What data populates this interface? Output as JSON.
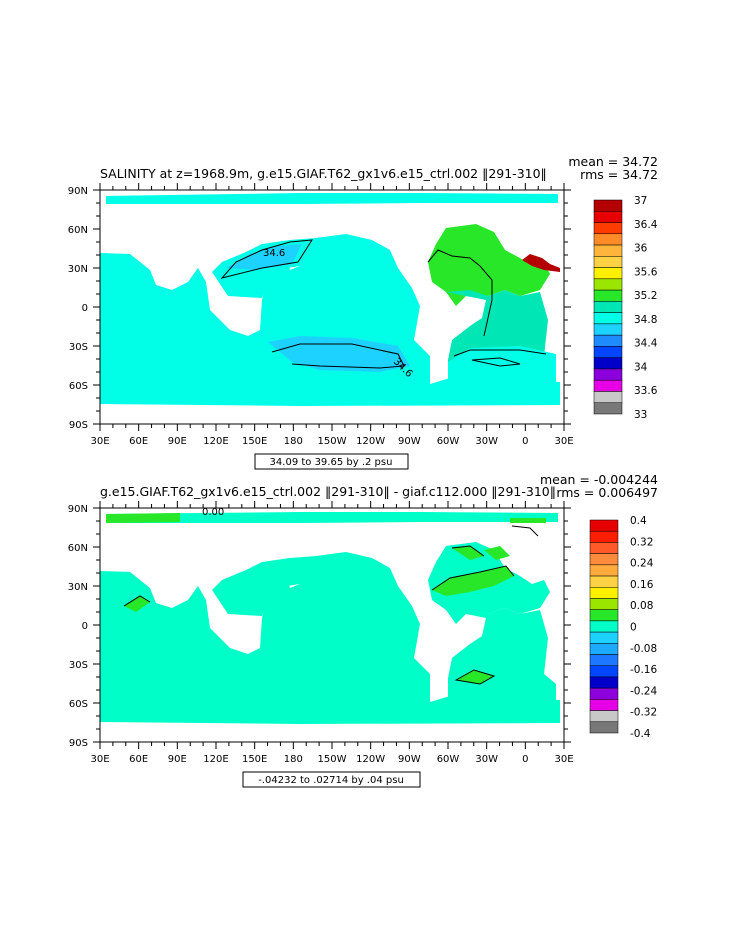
{
  "chart_data": [
    {
      "type": "heatmap",
      "title": "SALINITY at z=1968.9m, g.e15.GIAF.T62_gx1v6.e15_ctrl.002 ‖291-310‖",
      "stats": {
        "mean": "mean = 34.72",
        "rms": "rms = 34.72"
      },
      "range_label": "34.09 to 39.65 by .2 psu",
      "x_ticks": [
        "30E",
        "60E",
        "90E",
        "120E",
        "150E",
        "180",
        "150W",
        "120W",
        "90W",
        "60W",
        "30W",
        "0",
        "30E"
      ],
      "y_ticks": [
        "90N",
        "60N",
        "30N",
        "0",
        "30S",
        "60S",
        "90S"
      ],
      "colorbar": {
        "labels": [
          "37",
          "36.4",
          "36",
          "35.6",
          "35.2",
          "34.8",
          "34.4",
          "34",
          "33.6",
          "33"
        ],
        "colors": [
          "#b40000",
          "#e60000",
          "#ff3c00",
          "#ff8c28",
          "#ffb43c",
          "#ffd246",
          "#fff000",
          "#9be600",
          "#28e628",
          "#00e6b4",
          "#00ffe6",
          "#1ed2ff",
          "#1e8cff",
          "#0046ff",
          "#0000c8",
          "#8c00dc",
          "#e600e6",
          "#c8c8c8",
          "#787878"
        ]
      },
      "contour_labels": [
        "34.6",
        "34.6"
      ]
    },
    {
      "type": "heatmap",
      "title": "g.e15.GIAF.T62_gx1v6.e15_ctrl.002 ‖291-310‖ - giaf.c112.000 ‖291-310‖",
      "stats": {
        "mean": "mean = -0.004244",
        "rms": "rms = 0.006497"
      },
      "range_label": "-.04232 to .02714 by .04 psu",
      "x_ticks": [
        "30E",
        "60E",
        "90E",
        "120E",
        "150E",
        "180",
        "150W",
        "120W",
        "90W",
        "60W",
        "30W",
        "0",
        "30E"
      ],
      "y_ticks": [
        "90N",
        "60N",
        "30N",
        "0",
        "30S",
        "60S",
        "90S"
      ],
      "colorbar": {
        "labels": [
          "0.4",
          "0.32",
          "0.24",
          "0.16",
          "0.08",
          "0",
          "-0.08",
          "-0.16",
          "-0.24",
          "-0.32",
          "-0.4"
        ],
        "colors": [
          "#e60000",
          "#ff1e00",
          "#ff5a28",
          "#ff8c3c",
          "#ffaa3c",
          "#ffd246",
          "#fff000",
          "#9be600",
          "#28e628",
          "#00ffc8",
          "#1ed2ff",
          "#1eaaff",
          "#1e78ff",
          "#0046ff",
          "#0000c8",
          "#8c00dc",
          "#e600e6",
          "#c8c8c8",
          "#787878"
        ]
      },
      "contour_labels": [
        "0.00"
      ]
    }
  ]
}
